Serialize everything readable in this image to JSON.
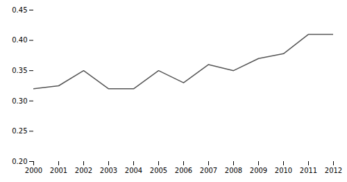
{
  "chart_data": {
    "type": "line",
    "x": [
      2000,
      2001,
      2002,
      2003,
      2004,
      2005,
      2006,
      2007,
      2008,
      2009,
      2010,
      2011,
      2012
    ],
    "values": [
      0.32,
      0.325,
      0.35,
      0.32,
      0.32,
      0.35,
      0.33,
      0.36,
      0.35,
      0.37,
      0.378,
      0.41,
      0.41
    ],
    "color": "#555555",
    "xlim": [
      2000,
      2012
    ],
    "xticks": [
      2000,
      2001,
      2002,
      2003,
      2004,
      2005,
      2006,
      2007,
      2008,
      2009,
      2010,
      2011,
      2012
    ],
    "ylim": [
      0.2,
      0.45
    ],
    "yticks": [
      {
        "value": 0.2,
        "label": "0.20"
      },
      0.25,
      {
        "value": 0.3,
        "label": "0.30"
      },
      0.35,
      {
        "value": 0.4,
        "label": "0.40"
      },
      0.45
    ],
    "grid": false
  }
}
